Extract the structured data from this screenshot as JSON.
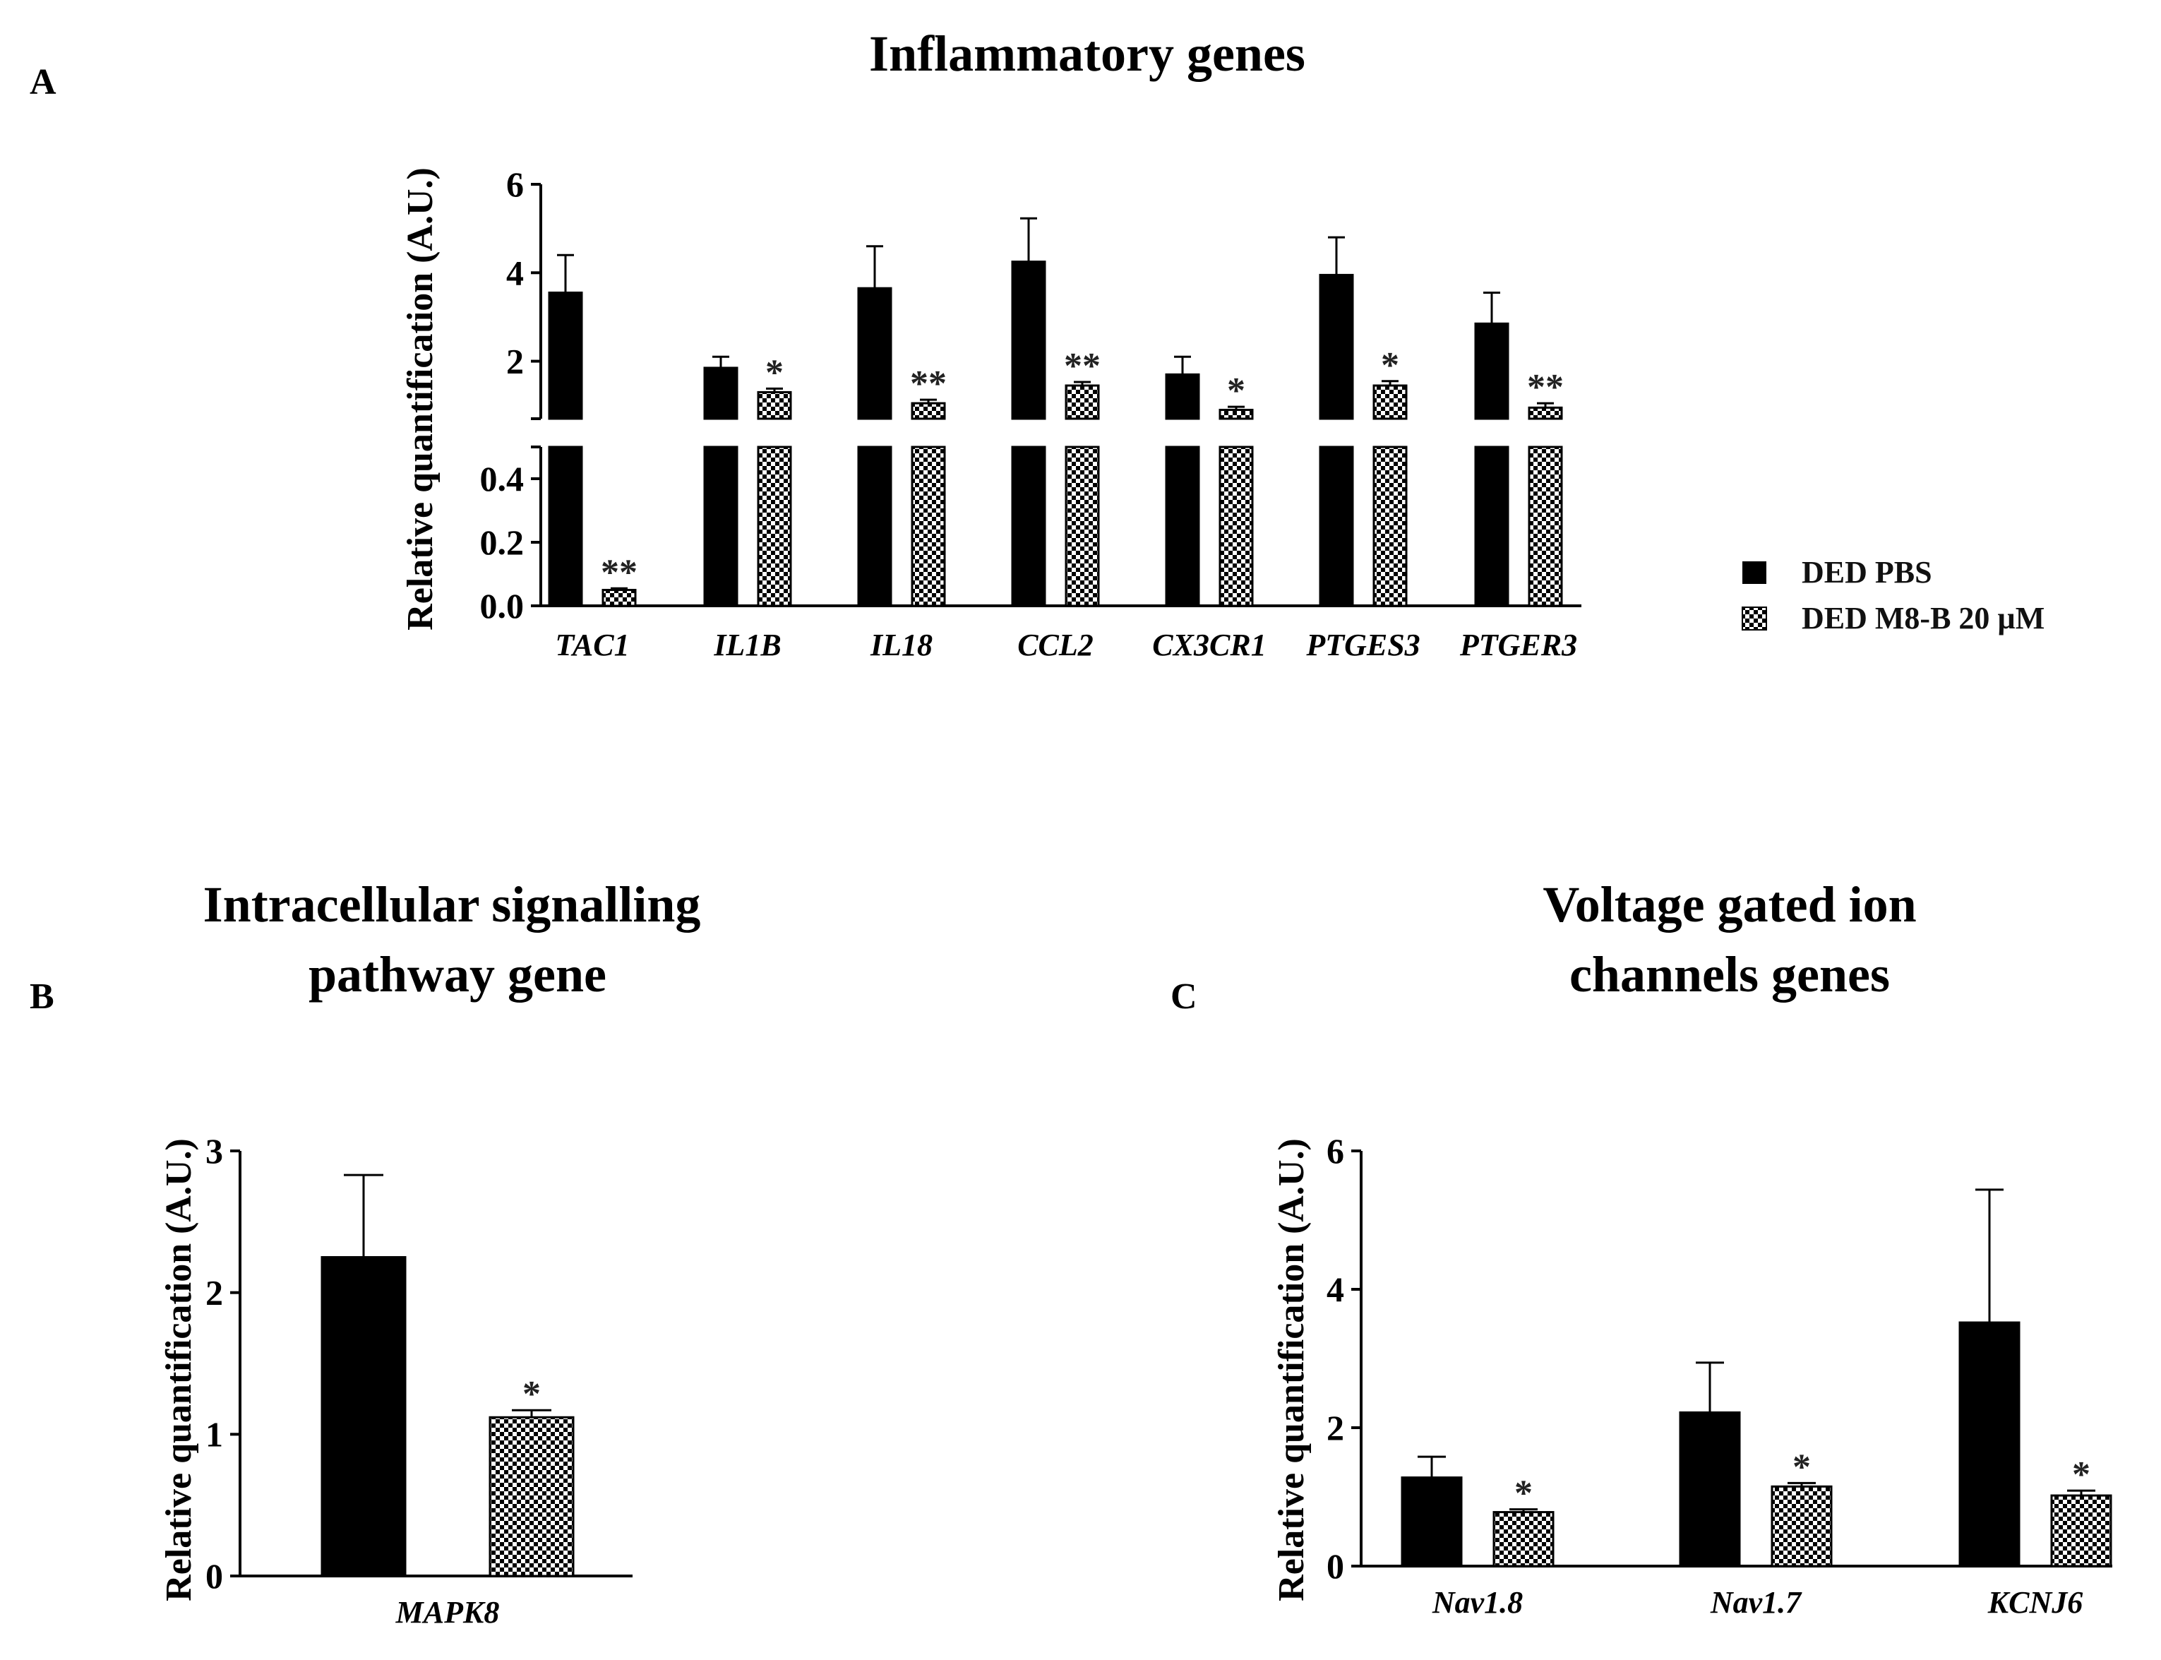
{
  "panel_labels": [
    "A",
    "B",
    "C"
  ],
  "legend": {
    "entries": [
      {
        "label": "DED PBS",
        "fill": "#000000"
      },
      {
        "label": "DED M8-B 20 µM",
        "fill": "checker"
      }
    ]
  },
  "colors": {
    "bar_solid": "#000000",
    "checker_dark": "#000000",
    "checker_light": "#ffffff"
  },
  "chart_data": [
    {
      "type": "bar",
      "panel": "A",
      "title": "Inflammatory genes",
      "xlabel": "",
      "ylabel": "Relative quantification (A.U.)",
      "axis_break": true,
      "lower_ylim": [
        0,
        0.5
      ],
      "upper_ylim": [
        0.7,
        6
      ],
      "lower_ticks": [
        0.0,
        0.2,
        0.4
      ],
      "lower_tick_labels": [
        "0.0",
        "0.2",
        "0.4"
      ],
      "upper_ticks": [
        2,
        4,
        6
      ],
      "upper_tick_labels": [
        "2",
        "4",
        "6"
      ],
      "categories": [
        "TAC1",
        "IL1B",
        "IL18",
        "CCL2",
        "CX3CR1",
        "PTGES3",
        "PTGER3"
      ],
      "series": [
        {
          "name": "DED PBS",
          "values": [
            3.55,
            1.85,
            3.65,
            4.25,
            1.7,
            3.95,
            2.85
          ],
          "errors": [
            0.85,
            0.25,
            0.95,
            0.98,
            0.4,
            0.85,
            0.7
          ]
        },
        {
          "name": "DED M8-B 20 µM",
          "values": [
            0.05,
            1.3,
            1.05,
            1.45,
            0.9,
            1.45,
            0.95
          ],
          "errors": [
            0.005,
            0.08,
            0.08,
            0.08,
            0.07,
            0.1,
            0.1
          ]
        }
      ],
      "significance": [
        "**",
        "*",
        "**",
        "**",
        "*",
        "*",
        "**"
      ]
    },
    {
      "type": "bar",
      "panel": "B",
      "title": "Intracellular signalling pathway gene",
      "title_lines": [
        "Intracellular signalling",
        "pathway gene"
      ],
      "xlabel": "",
      "ylabel": "Relative quantification (A.U.)",
      "ylim": [
        0,
        3
      ],
      "yticks": [
        0,
        1,
        2,
        3
      ],
      "ytick_labels": [
        "0",
        "1",
        "2",
        "3"
      ],
      "categories": [
        "MAPK8"
      ],
      "series": [
        {
          "name": "DED PBS",
          "values": [
            2.25
          ],
          "errors": [
            0.58
          ]
        },
        {
          "name": "DED M8-B 20 µM",
          "values": [
            1.12
          ],
          "errors": [
            0.05
          ]
        }
      ],
      "significance": [
        "*"
      ]
    },
    {
      "type": "bar",
      "panel": "C",
      "title": "Voltage gated ion channels genes",
      "title_lines": [
        "Voltage gated ion",
        "channels genes"
      ],
      "xlabel": "",
      "ylabel": "Relative quantification (A.U.)",
      "ylim": [
        0,
        6
      ],
      "yticks": [
        0,
        2,
        4,
        6
      ],
      "ytick_labels": [
        "0",
        "2",
        "4",
        "6"
      ],
      "categories": [
        "Nav1.8",
        "Nav1.7",
        "KCNJ6"
      ],
      "series": [
        {
          "name": "DED PBS",
          "values": [
            1.28,
            2.22,
            3.52
          ],
          "errors": [
            0.3,
            0.72,
            1.92
          ]
        },
        {
          "name": "DED M8-B 20 µM",
          "values": [
            0.78,
            1.15,
            1.02
          ],
          "errors": [
            0.04,
            0.05,
            0.07
          ]
        }
      ],
      "significance": [
        "*",
        "*",
        "*"
      ]
    }
  ]
}
